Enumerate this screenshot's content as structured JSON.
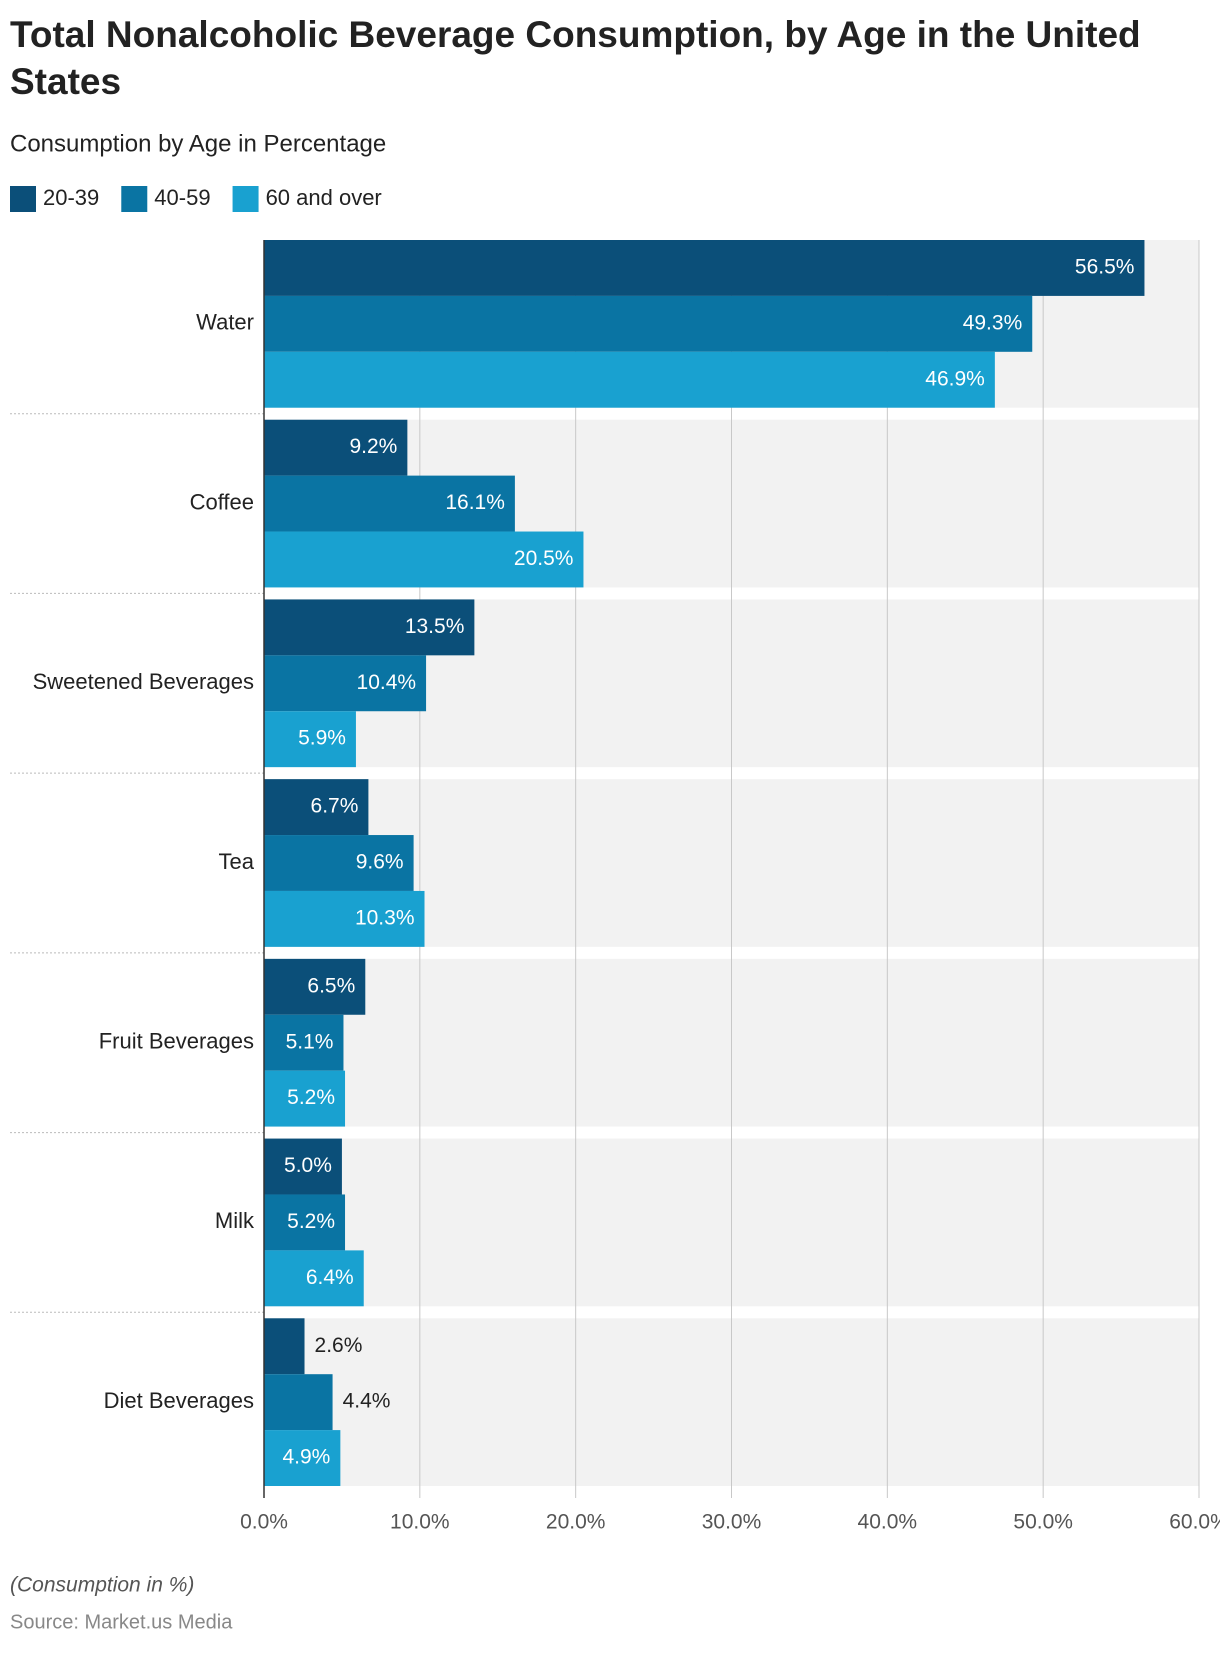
{
  "chart_data": {
    "type": "hbar",
    "title": "Total Nonalcoholic Beverage Consumption, by Age in the United States",
    "subtitle": "Consumption by Age in Percentage",
    "note": "(Consumption in %)",
    "source": "Source: Market.us Media",
    "categories": [
      "Water",
      "Coffee",
      "Sweetened Beverages",
      "Tea",
      "Fruit Beverages",
      "Milk",
      "Diet Beverages"
    ],
    "series": [
      {
        "name": "20-39",
        "color": "#0b4f79",
        "values": [
          56.5,
          9.2,
          13.5,
          6.7,
          6.5,
          5.0,
          2.6
        ],
        "value_labels": [
          "56.5%",
          "9.2%",
          "13.5%",
          "6.7%",
          "6.5%",
          "5.0%",
          "2.6%"
        ]
      },
      {
        "name": "40-59",
        "color": "#0a74a3",
        "values": [
          49.3,
          16.1,
          10.4,
          9.6,
          5.1,
          5.2,
          4.4
        ],
        "value_labels": [
          "49.3%",
          "16.1%",
          "10.4%",
          "9.6%",
          "5.1%",
          "5.2%",
          "4.4%"
        ]
      },
      {
        "name": "60 and over",
        "color": "#19a1d0",
        "values": [
          46.9,
          20.5,
          5.9,
          10.3,
          5.2,
          6.4,
          4.9
        ],
        "value_labels": [
          "46.9%",
          "20.5%",
          "5.9%",
          "10.3%",
          "5.2%",
          "6.4%",
          "4.9%"
        ]
      }
    ],
    "xlim": [
      0,
      60
    ],
    "xticks": [
      {
        "value": 0,
        "label": "0.0%"
      },
      {
        "value": 10,
        "label": "10.0%"
      },
      {
        "value": 20,
        "label": "20.0%"
      },
      {
        "value": 30,
        "label": "30.0%"
      },
      {
        "value": 40,
        "label": "40.0%"
      },
      {
        "value": 50,
        "label": "50.0%"
      },
      {
        "value": 60,
        "label": "60.0%"
      }
    ],
    "grid": true
  }
}
